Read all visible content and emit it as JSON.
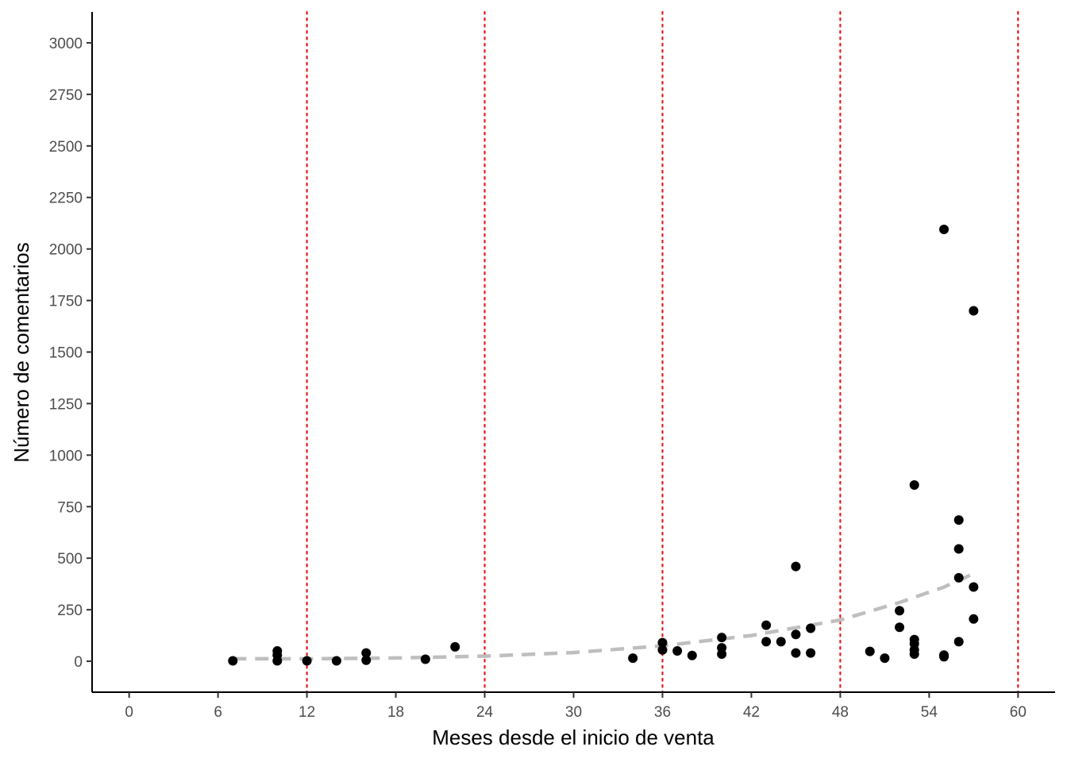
{
  "chart_data": {
    "type": "scatter",
    "title": "",
    "xlabel": "Meses desde el inicio de venta",
    "ylabel": "Número de comentarios",
    "xlim": [
      -2.5,
      62.5
    ],
    "ylim": [
      -150,
      3150
    ],
    "x_ticks": [
      0,
      6,
      12,
      18,
      24,
      30,
      36,
      42,
      48,
      54,
      60
    ],
    "y_ticks": [
      0,
      250,
      500,
      750,
      1000,
      1250,
      1500,
      1750,
      2000,
      2250,
      2500,
      2750,
      3000
    ],
    "grid": false,
    "vertical_reference_lines": {
      "x": [
        12,
        24,
        36,
        48,
        60
      ],
      "style": "dotted",
      "color": "#e41a1c"
    },
    "trend_line": {
      "style": "dashed",
      "color": "#bebebe",
      "x_range": [
        7,
        57
      ],
      "points": [
        {
          "x": 7,
          "y": 12
        },
        {
          "x": 12,
          "y": 12
        },
        {
          "x": 18,
          "y": 16
        },
        {
          "x": 24,
          "y": 25
        },
        {
          "x": 30,
          "y": 42
        },
        {
          "x": 36,
          "y": 75
        },
        {
          "x": 42,
          "y": 125
        },
        {
          "x": 48,
          "y": 200
        },
        {
          "x": 52,
          "y": 285
        },
        {
          "x": 55,
          "y": 360
        },
        {
          "x": 57,
          "y": 425
        }
      ]
    },
    "points": [
      {
        "x": 7,
        "y": 2
      },
      {
        "x": 10,
        "y": 50
      },
      {
        "x": 10,
        "y": 30
      },
      {
        "x": 10,
        "y": 2
      },
      {
        "x": 12,
        "y": 2
      },
      {
        "x": 14,
        "y": 2
      },
      {
        "x": 16,
        "y": 40
      },
      {
        "x": 16,
        "y": 5
      },
      {
        "x": 20,
        "y": 10
      },
      {
        "x": 22,
        "y": 70
      },
      {
        "x": 34,
        "y": 15
      },
      {
        "x": 36,
        "y": 90
      },
      {
        "x": 36,
        "y": 55
      },
      {
        "x": 37,
        "y": 50
      },
      {
        "x": 38,
        "y": 28
      },
      {
        "x": 40,
        "y": 115
      },
      {
        "x": 40,
        "y": 65
      },
      {
        "x": 40,
        "y": 35
      },
      {
        "x": 43,
        "y": 175
      },
      {
        "x": 43,
        "y": 95
      },
      {
        "x": 44,
        "y": 95
      },
      {
        "x": 45,
        "y": 460
      },
      {
        "x": 45,
        "y": 130
      },
      {
        "x": 45,
        "y": 40
      },
      {
        "x": 46,
        "y": 160
      },
      {
        "x": 46,
        "y": 40
      },
      {
        "x": 50,
        "y": 48
      },
      {
        "x": 51,
        "y": 15
      },
      {
        "x": 52,
        "y": 245
      },
      {
        "x": 52,
        "y": 165
      },
      {
        "x": 53,
        "y": 855
      },
      {
        "x": 53,
        "y": 105
      },
      {
        "x": 53,
        "y": 85
      },
      {
        "x": 53,
        "y": 55
      },
      {
        "x": 53,
        "y": 35
      },
      {
        "x": 55,
        "y": 2095
      },
      {
        "x": 55,
        "y": 30
      },
      {
        "x": 55,
        "y": 22
      },
      {
        "x": 56,
        "y": 685
      },
      {
        "x": 56,
        "y": 545
      },
      {
        "x": 56,
        "y": 405
      },
      {
        "x": 56,
        "y": 95
      },
      {
        "x": 57,
        "y": 1700
      },
      {
        "x": 57,
        "y": 360
      },
      {
        "x": 57,
        "y": 205
      }
    ],
    "colors": {
      "points": "#000000",
      "axis": "#000000",
      "tick_label": "#4d4d4d"
    }
  }
}
